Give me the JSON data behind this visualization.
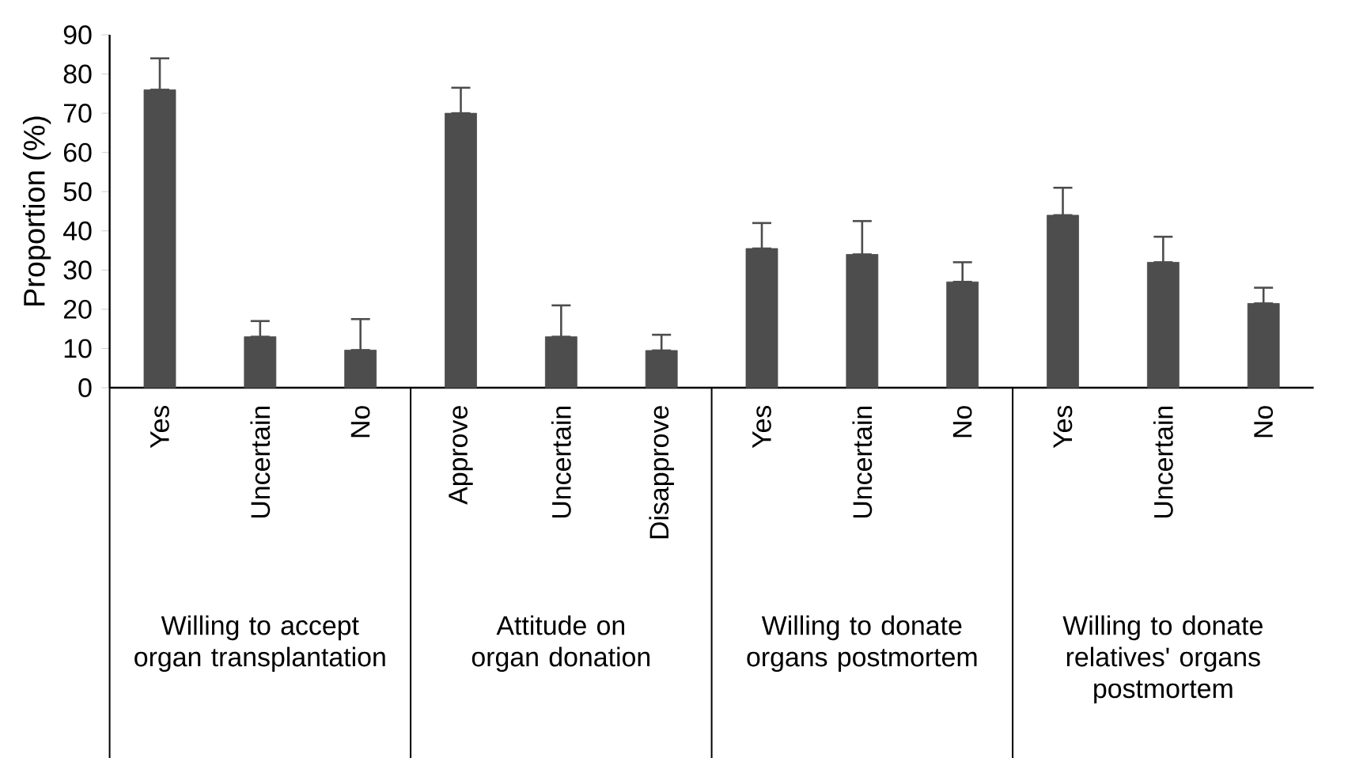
{
  "chart_data": {
    "type": "bar",
    "ylabel": "Proportion (%)",
    "categories": [
      "Yes",
      "Uncertain",
      "No",
      "Approve",
      "Uncertain",
      "Disapprove",
      "Yes",
      "Uncertain",
      "No",
      "Yes",
      "Uncertain",
      "No"
    ],
    "values": [
      76,
      13,
      9.6,
      70,
      13,
      9.5,
      35.5,
      34,
      27,
      44,
      32,
      21.5
    ],
    "errors": [
      [
        76,
        84
      ],
      [
        13,
        17
      ],
      [
        9.6,
        17.5
      ],
      [
        70,
        76.5
      ],
      [
        13,
        21
      ],
      [
        9.5,
        13.5
      ],
      [
        35.5,
        42
      ],
      [
        34,
        42.5
      ],
      [
        27,
        32
      ],
      [
        44,
        51
      ],
      [
        32,
        38.5
      ],
      [
        21.5,
        25.5
      ]
    ],
    "color": "#4d4d4d",
    "ylim": [
      0,
      90
    ],
    "yticks": [
      0,
      10,
      20,
      30,
      40,
      50,
      60,
      70,
      80,
      90
    ],
    "annotations": [
      "Willing to accept organ transplantation",
      "Attitude on organ donation",
      "Willing to donate organs postmortem",
      "Willing to donate relatives' organs postmortem"
    ]
  }
}
